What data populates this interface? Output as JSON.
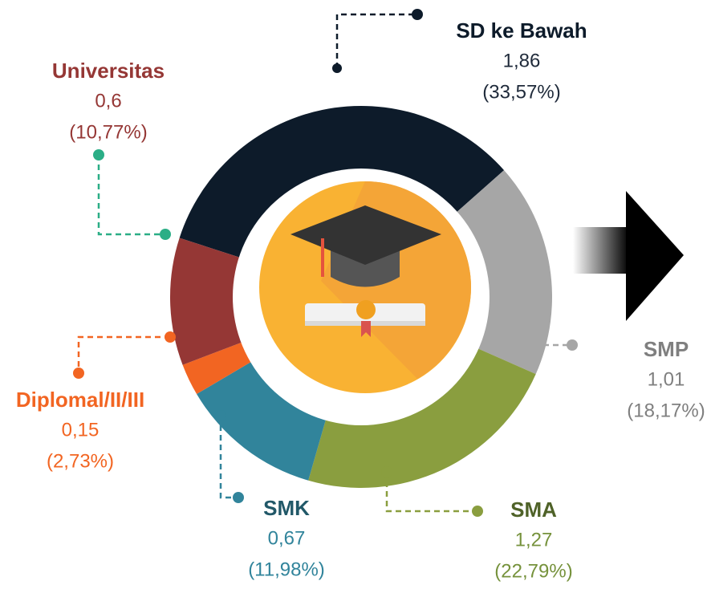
{
  "chart_data": {
    "type": "donut",
    "categories": [
      "SD ke Bawah",
      "SMP",
      "SMA",
      "SMK",
      "Diplomal/II/III",
      "Universitas"
    ],
    "values": [
      1.86,
      1.01,
      1.27,
      0.67,
      0.15,
      0.6
    ],
    "value_labels": [
      "1,86",
      "1,01",
      "1,27",
      "0,67",
      "0,15",
      "0,6"
    ],
    "shares": [
      33.57,
      18.17,
      22.79,
      11.98,
      2.73,
      10.77
    ],
    "share_labels": [
      "(33,57%)",
      "(18,17%)",
      "(22,79%)",
      "(11,98%)",
      "(2,73%)",
      "(10,77%)"
    ],
    "colors": [
      "#0d1b2a",
      "#a6a6a6",
      "#8a9e3f",
      "#31849b",
      "#f26522",
      "#953735"
    ]
  }
}
